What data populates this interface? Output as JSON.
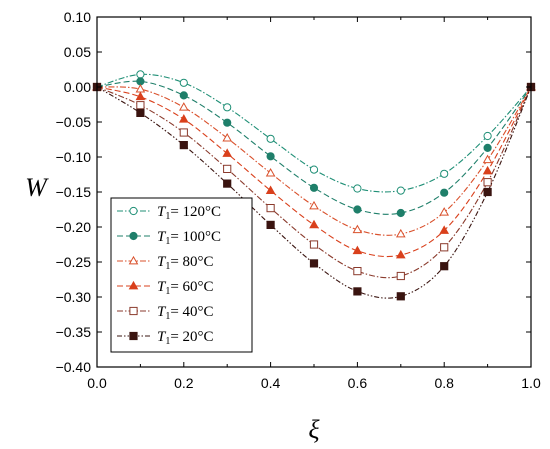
{
  "chart_data": {
    "type": "line",
    "xlabel": "ξ",
    "ylabel": "W",
    "xlim": [
      0.0,
      1.0
    ],
    "ylim": [
      -0.4,
      0.1
    ],
    "xticks": [
      "0.0",
      "0.2",
      "0.4",
      "0.6",
      "0.8",
      "1.0"
    ],
    "yticks": [
      "0.10",
      "0.05",
      "0.00",
      "−0.05",
      "−0.10",
      "−0.15",
      "−0.20",
      "−0.25",
      "−0.30",
      "−0.35",
      "−0.40"
    ],
    "grid": false,
    "legend_position": "bottom-left",
    "x": [
      0.0,
      0.1,
      0.2,
      0.3,
      0.4,
      0.5,
      0.6,
      0.7,
      0.8,
      0.9,
      1.0
    ],
    "series": [
      {
        "name": "T1= 120°C",
        "name_main": "T",
        "name_sub": "1",
        "name_rest": "= 120°C",
        "marker": "circle",
        "filled": false,
        "color": "#1f8f76",
        "dash": "6,2,1.5,2",
        "values": [
          0.0,
          0.018,
          0.006,
          -0.029,
          -0.074,
          -0.118,
          -0.145,
          -0.148,
          -0.124,
          -0.07,
          0.0
        ]
      },
      {
        "name": "T1= 100°C",
        "name_main": "T",
        "name_sub": "1",
        "name_rest": "= 100°C",
        "marker": "circle",
        "filled": true,
        "color": "#1f7f6a",
        "dash": "6,3",
        "values": [
          0.0,
          0.008,
          -0.012,
          -0.051,
          -0.099,
          -0.144,
          -0.175,
          -0.18,
          -0.151,
          -0.087,
          0.0
        ]
      },
      {
        "name": "T1= 80°C",
        "name_main": "T",
        "name_sub": "1",
        "name_rest": "= 80°C",
        "marker": "triangle",
        "filled": false,
        "color": "#d9502b",
        "dash": "6,2,1.5,2",
        "values": [
          0.0,
          -0.003,
          -0.029,
          -0.073,
          -0.123,
          -0.17,
          -0.204,
          -0.21,
          -0.179,
          -0.104,
          0.0
        ]
      },
      {
        "name": "T1= 60°C",
        "name_main": "T",
        "name_sub": "1",
        "name_rest": "= 60°C",
        "marker": "triangle",
        "filled": true,
        "color": "#d9401c",
        "dash": "6,3",
        "values": [
          0.0,
          -0.014,
          -0.046,
          -0.095,
          -0.148,
          -0.197,
          -0.234,
          -0.24,
          -0.205,
          -0.12,
          0.0
        ]
      },
      {
        "name": "T1= 40°C",
        "name_main": "T",
        "name_sub": "1",
        "name_rest": "= 40°C",
        "marker": "square",
        "filled": false,
        "color": "#8a3a2c",
        "dash": "6,2,1.5,2",
        "values": [
          0.0,
          -0.026,
          -0.065,
          -0.117,
          -0.173,
          -0.225,
          -0.263,
          -0.27,
          -0.229,
          -0.136,
          0.0
        ]
      },
      {
        "name": "T1= 20°C",
        "name_main": "T",
        "name_sub": "1",
        "name_rest": "= 20°C",
        "marker": "square",
        "filled": true,
        "color": "#3a1410",
        "dash": "5,2,1.5,2,1.5,2",
        "values": [
          0.0,
          -0.037,
          -0.083,
          -0.138,
          -0.197,
          -0.252,
          -0.292,
          -0.299,
          -0.256,
          -0.15,
          0.0
        ]
      }
    ]
  }
}
